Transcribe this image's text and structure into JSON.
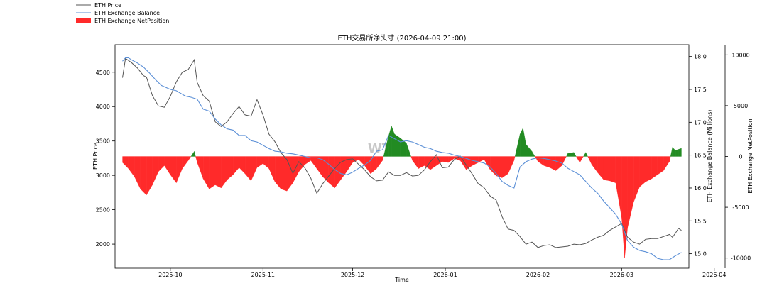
{
  "chart_data": {
    "type": "line",
    "title": "ETH交易所净头寸 (2026-04-09 21:00)",
    "xlabel": "Time",
    "watermark": "WT",
    "x_ticks": [
      "2025-10",
      "2025-11",
      "2025-12",
      "2026-01",
      "2026-02",
      "2026-03",
      "2026-04"
    ],
    "legend": {
      "placement": "top-left outside",
      "entries": [
        {
          "label": "ETH Price",
          "color": "#555555",
          "kind": "line"
        },
        {
          "label": "ETH Exchange Balance",
          "color": "#5b8fd6",
          "kind": "line"
        },
        {
          "label": "ETH Exchange NetPosition",
          "color": "#ff2a2a",
          "kind": "patch"
        }
      ]
    },
    "axes": {
      "price": {
        "label": "ETH Price",
        "ylim": [
          1650,
          4900
        ],
        "ticks": [
          2000,
          2500,
          3000,
          3500,
          4000,
          4500
        ]
      },
      "balance": {
        "label": "ETH Exchange Balance (Millions)",
        "ylim": [
          14.78,
          18.18
        ],
        "ticks": [
          "15.0",
          "15.5",
          "16.0",
          "16.5",
          "17.0",
          "17.5",
          "18.0"
        ]
      },
      "netposition": {
        "label": "ETH Exchange NetPosition",
        "ylim": [
          -11000,
          11000
        ],
        "ticks": [
          -10000,
          -5000,
          0,
          5000,
          10000
        ]
      }
    },
    "x_range_days": [
      -18.5,
      173.5
    ],
    "series": [
      {
        "name": "ETH Price",
        "color": "#555555",
        "points": [
          [
            -16,
            4420
          ],
          [
            -15,
            4700
          ],
          [
            -13,
            4640
          ],
          [
            -11,
            4560
          ],
          [
            -9,
            4450
          ],
          [
            -8,
            4430
          ],
          [
            -6,
            4160
          ],
          [
            -4,
            4010
          ],
          [
            -2,
            3990
          ],
          [
            0,
            4150
          ],
          [
            2,
            4360
          ],
          [
            4,
            4500
          ],
          [
            6,
            4540
          ],
          [
            8,
            4680
          ],
          [
            9,
            4350
          ],
          [
            11,
            4160
          ],
          [
            13,
            4080
          ],
          [
            15,
            3780
          ],
          [
            17,
            3710
          ],
          [
            19,
            3780
          ],
          [
            21,
            3900
          ],
          [
            23,
            4000
          ],
          [
            25,
            3880
          ],
          [
            27,
            3860
          ],
          [
            29,
            4100
          ],
          [
            31,
            3880
          ],
          [
            33,
            3600
          ],
          [
            35,
            3490
          ],
          [
            37,
            3330
          ],
          [
            39,
            3230
          ],
          [
            41,
            3030
          ],
          [
            43,
            3200
          ],
          [
            45,
            3110
          ],
          [
            47,
            2960
          ],
          [
            49,
            2740
          ],
          [
            51,
            2880
          ],
          [
            53,
            2990
          ],
          [
            55,
            3100
          ],
          [
            57,
            3190
          ],
          [
            59,
            3230
          ],
          [
            61,
            3240
          ],
          [
            63,
            3160
          ],
          [
            65,
            3080
          ],
          [
            67,
            2980
          ],
          [
            69,
            2920
          ],
          [
            71,
            2930
          ],
          [
            73,
            3050
          ],
          [
            75,
            3000
          ],
          [
            77,
            3000
          ],
          [
            79,
            3040
          ],
          [
            81,
            2990
          ],
          [
            83,
            3000
          ],
          [
            85,
            3080
          ],
          [
            87,
            3200
          ],
          [
            89,
            3300
          ],
          [
            91,
            3110
          ],
          [
            93,
            3120
          ],
          [
            95,
            3230
          ],
          [
            97,
            3280
          ],
          [
            99,
            3150
          ],
          [
            101,
            3020
          ],
          [
            103,
            2880
          ],
          [
            105,
            2820
          ],
          [
            107,
            2700
          ],
          [
            109,
            2640
          ],
          [
            111,
            2400
          ],
          [
            113,
            2220
          ],
          [
            115,
            2200
          ],
          [
            117,
            2110
          ],
          [
            119,
            2000
          ],
          [
            121,
            2030
          ],
          [
            123,
            1950
          ],
          [
            125,
            1980
          ],
          [
            127,
            1990
          ],
          [
            129,
            1950
          ],
          [
            131,
            1960
          ],
          [
            133,
            1970
          ],
          [
            135,
            2000
          ],
          [
            137,
            1990
          ],
          [
            139,
            2010
          ],
          [
            141,
            2060
          ],
          [
            143,
            2100
          ],
          [
            145,
            2130
          ],
          [
            147,
            2200
          ],
          [
            149,
            2250
          ],
          [
            151,
            2300
          ],
          [
            153,
            2100
          ],
          [
            155,
            2030
          ],
          [
            157,
            2000
          ],
          [
            159,
            2070
          ],
          [
            161,
            2080
          ],
          [
            163,
            2080
          ],
          [
            165,
            2110
          ],
          [
            167,
            2140
          ],
          [
            168,
            2100
          ],
          [
            169,
            2160
          ],
          [
            170,
            2230
          ],
          [
            171,
            2200
          ]
        ]
      },
      {
        "name": "ETH Exchange Balance",
        "color": "#5b8fd6",
        "points": [
          [
            -16,
            17.93
          ],
          [
            -15,
            17.98
          ],
          [
            -14,
            17.98
          ],
          [
            -13,
            17.95
          ],
          [
            -11,
            17.9
          ],
          [
            -9,
            17.84
          ],
          [
            -7,
            17.75
          ],
          [
            -5,
            17.65
          ],
          [
            -3,
            17.56
          ],
          [
            0,
            17.5
          ],
          [
            2,
            17.48
          ],
          [
            5,
            17.4
          ],
          [
            7,
            17.38
          ],
          [
            9,
            17.35
          ],
          [
            11,
            17.2
          ],
          [
            13,
            17.17
          ],
          [
            15,
            17.05
          ],
          [
            17,
            16.96
          ],
          [
            19,
            16.9
          ],
          [
            21,
            16.88
          ],
          [
            23,
            16.8
          ],
          [
            25,
            16.8
          ],
          [
            27,
            16.72
          ],
          [
            29,
            16.7
          ],
          [
            31,
            16.65
          ],
          [
            33,
            16.6
          ],
          [
            35,
            16.56
          ],
          [
            37,
            16.55
          ],
          [
            39,
            16.53
          ],
          [
            41,
            16.52
          ],
          [
            43,
            16.5
          ],
          [
            45,
            16.48
          ],
          [
            47,
            16.46
          ],
          [
            49,
            16.46
          ],
          [
            51,
            16.43
          ],
          [
            53,
            16.36
          ],
          [
            55,
            16.28
          ],
          [
            57,
            16.22
          ],
          [
            59,
            16.2
          ],
          [
            61,
            16.24
          ],
          [
            63,
            16.3
          ],
          [
            65,
            16.35
          ],
          [
            67,
            16.42
          ],
          [
            69,
            16.56
          ],
          [
            71,
            16.58
          ],
          [
            73,
            16.8
          ],
          [
            75,
            16.75
          ],
          [
            77,
            16.7
          ],
          [
            79,
            16.72
          ],
          [
            81,
            16.7
          ],
          [
            83,
            16.66
          ],
          [
            85,
            16.62
          ],
          [
            87,
            16.6
          ],
          [
            89,
            16.56
          ],
          [
            91,
            16.54
          ],
          [
            93,
            16.53
          ],
          [
            95,
            16.5
          ],
          [
            97,
            16.48
          ],
          [
            99,
            16.45
          ],
          [
            101,
            16.42
          ],
          [
            103,
            16.4
          ],
          [
            105,
            16.38
          ],
          [
            107,
            16.32
          ],
          [
            109,
            16.22
          ],
          [
            111,
            16.1
          ],
          [
            113,
            16.04
          ],
          [
            115,
            16.0
          ],
          [
            117,
            16.32
          ],
          [
            119,
            16.4
          ],
          [
            121,
            16.44
          ],
          [
            123,
            16.46
          ],
          [
            125,
            16.45
          ],
          [
            127,
            16.43
          ],
          [
            129,
            16.41
          ],
          [
            131,
            16.38
          ],
          [
            133,
            16.3
          ],
          [
            135,
            16.25
          ],
          [
            137,
            16.2
          ],
          [
            139,
            16.1
          ],
          [
            141,
            16.0
          ],
          [
            143,
            15.92
          ],
          [
            145,
            15.8
          ],
          [
            147,
            15.7
          ],
          [
            149,
            15.6
          ],
          [
            151,
            15.45
          ],
          [
            153,
            15.2
          ],
          [
            155,
            15.1
          ],
          [
            157,
            15.05
          ],
          [
            159,
            15.03
          ],
          [
            161,
            15.0
          ],
          [
            163,
            14.93
          ],
          [
            165,
            14.91
          ],
          [
            167,
            14.91
          ],
          [
            169,
            14.97
          ],
          [
            171,
            15.02
          ]
        ]
      },
      {
        "name": "ETH Exchange NetPosition",
        "color_negative": "#ff2a2a",
        "color_positive": "#228b22",
        "points": [
          [
            -16,
            -600
          ],
          [
            -14,
            -1200
          ],
          [
            -12,
            -2000
          ],
          [
            -10,
            -3200
          ],
          [
            -8,
            -3800
          ],
          [
            -6,
            -2800
          ],
          [
            -4,
            -1500
          ],
          [
            -2,
            -900
          ],
          [
            0,
            -1800
          ],
          [
            2,
            -2600
          ],
          [
            4,
            -1200
          ],
          [
            6,
            -400
          ],
          [
            8,
            500
          ],
          [
            9,
            -600
          ],
          [
            11,
            -2200
          ],
          [
            13,
            -3200
          ],
          [
            15,
            -2800
          ],
          [
            17,
            -3100
          ],
          [
            19,
            -2300
          ],
          [
            21,
            -1800
          ],
          [
            23,
            -1100
          ],
          [
            25,
            -1700
          ],
          [
            27,
            -2400
          ],
          [
            29,
            -1100
          ],
          [
            31,
            -700
          ],
          [
            33,
            -1200
          ],
          [
            35,
            -2500
          ],
          [
            37,
            -3200
          ],
          [
            39,
            -3400
          ],
          [
            41,
            -2600
          ],
          [
            43,
            -1500
          ],
          [
            45,
            -800
          ],
          [
            47,
            -400
          ],
          [
            49,
            -1200
          ],
          [
            51,
            -2000
          ],
          [
            53,
            -2600
          ],
          [
            55,
            -3100
          ],
          [
            57,
            -2300
          ],
          [
            59,
            -1500
          ],
          [
            61,
            -600
          ],
          [
            63,
            -300
          ],
          [
            65,
            -900
          ],
          [
            67,
            -1700
          ],
          [
            69,
            -1200
          ],
          [
            71,
            -400
          ],
          [
            73,
            2000
          ],
          [
            74,
            3000
          ],
          [
            75,
            2200
          ],
          [
            77,
            1800
          ],
          [
            79,
            1300
          ],
          [
            81,
            -400
          ],
          [
            83,
            -1200
          ],
          [
            85,
            -900
          ],
          [
            87,
            -1300
          ],
          [
            89,
            -900
          ],
          [
            91,
            -500
          ],
          [
            93,
            -600
          ],
          [
            95,
            -200
          ],
          [
            97,
            -400
          ],
          [
            99,
            -1300
          ],
          [
            101,
            -900
          ],
          [
            103,
            -600
          ],
          [
            105,
            -300
          ],
          [
            107,
            -1300
          ],
          [
            109,
            -1900
          ],
          [
            111,
            -2100
          ],
          [
            113,
            -1700
          ],
          [
            115,
            -400
          ],
          [
            117,
            2200
          ],
          [
            118,
            2800
          ],
          [
            119,
            1200
          ],
          [
            121,
            500
          ],
          [
            123,
            -500
          ],
          [
            125,
            -900
          ],
          [
            127,
            -1100
          ],
          [
            129,
            -1400
          ],
          [
            131,
            -900
          ],
          [
            133,
            300
          ],
          [
            135,
            400
          ],
          [
            137,
            -600
          ],
          [
            139,
            400
          ],
          [
            141,
            -800
          ],
          [
            143,
            -1600
          ],
          [
            145,
            -2300
          ],
          [
            147,
            -2400
          ],
          [
            149,
            -2600
          ],
          [
            151,
            -6000
          ],
          [
            152,
            -10000
          ],
          [
            153,
            -7000
          ],
          [
            155,
            -4500
          ],
          [
            157,
            -3000
          ],
          [
            159,
            -2500
          ],
          [
            161,
            -2200
          ],
          [
            163,
            -1800
          ],
          [
            165,
            -1400
          ],
          [
            167,
            -500
          ],
          [
            168,
            900
          ],
          [
            169,
            600
          ],
          [
            170,
            700
          ],
          [
            171,
            800
          ]
        ]
      }
    ]
  }
}
